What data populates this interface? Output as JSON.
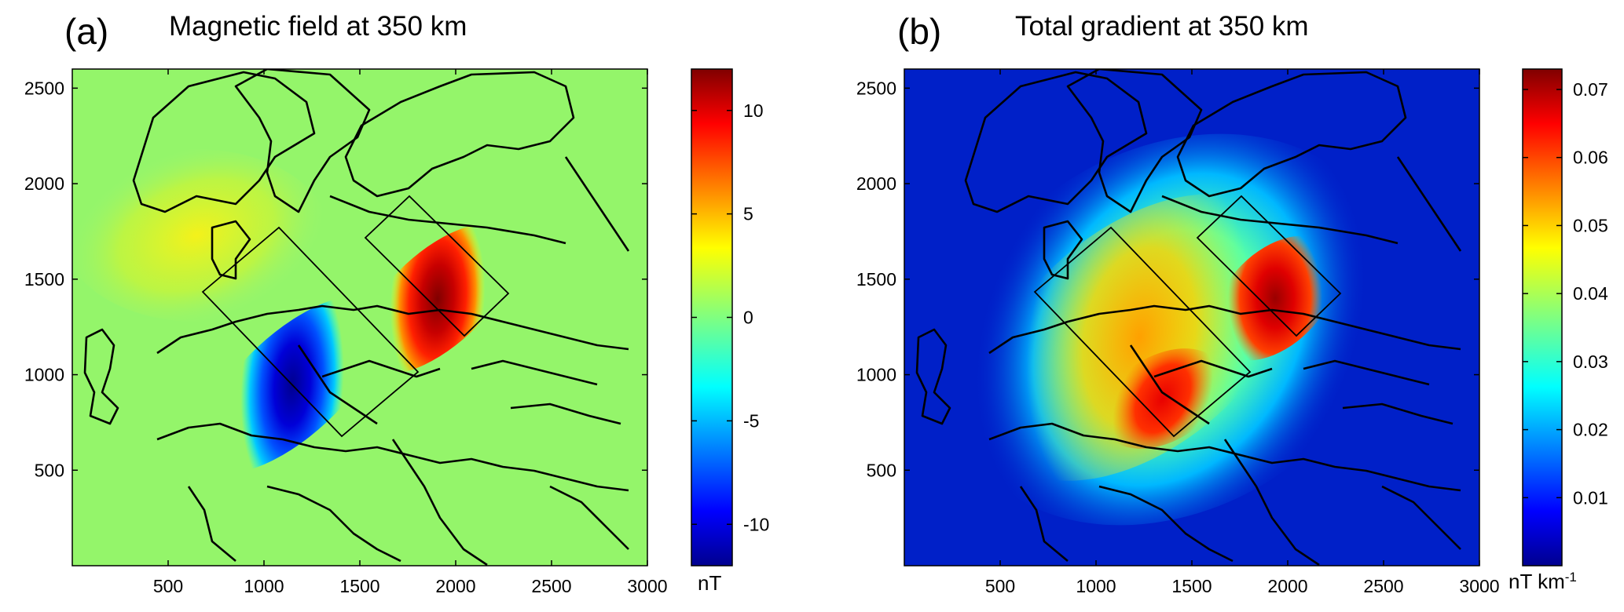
{
  "figure": {
    "panels": [
      {
        "label": "(a)",
        "title": "Magnetic field at 350 km"
      },
      {
        "label": "(b)",
        "title": "Total gradient at 350 km"
      }
    ]
  },
  "chart_data": [
    {
      "type": "heatmap",
      "title": "Magnetic field at 350 km",
      "panel_label": "(a)",
      "xlim": [
        0,
        3000
      ],
      "ylim": [
        0,
        2600
      ],
      "x_ticks": [
        500,
        1000,
        1500,
        2000,
        2500,
        3000
      ],
      "x_tick_labels": [
        "500",
        "1000",
        "1500",
        "2000",
        "2500",
        "3000"
      ],
      "y_ticks": [
        500,
        1000,
        1500,
        2000,
        2500
      ],
      "y_tick_labels": [
        "500",
        "1000",
        "1500",
        "2000",
        "2500"
      ],
      "colorbar": {
        "range": [
          -12,
          12
        ],
        "colormap": "jet",
        "ticks": [
          -10,
          -5,
          0,
          5,
          10
        ],
        "tick_labels": [
          "-10",
          "-5",
          "0",
          "5",
          "10"
        ],
        "label": "nT"
      },
      "anomalies": [
        {
          "kind": "positive",
          "x": 1950,
          "y": 1400,
          "value": 12
        },
        {
          "kind": "negative",
          "x": 1150,
          "y": 950,
          "value": -12
        },
        {
          "kind": "weak-positive",
          "x": 700,
          "y": 1750,
          "value": 3
        }
      ],
      "rectangles": [
        {
          "corners": [
            [
              680,
              1420
            ],
            [
              1080,
              1770
            ],
            [
              1810,
              990
            ],
            [
              1410,
              640
            ]
          ]
        },
        {
          "corners": [
            [
              1520,
              1710
            ],
            [
              1750,
              1930
            ],
            [
              2270,
              1400
            ],
            [
              2040,
              1180
            ]
          ]
        }
      ]
    },
    {
      "type": "heatmap",
      "title": "Total gradient at 350 km",
      "panel_label": "(b)",
      "xlim": [
        0,
        3000
      ],
      "ylim": [
        0,
        2600
      ],
      "x_ticks": [
        500,
        1000,
        1500,
        2000,
        2500,
        3000
      ],
      "x_tick_labels": [
        "500",
        "1000",
        "1500",
        "2000",
        "2500",
        "3000"
      ],
      "y_ticks": [
        500,
        1000,
        1500,
        2000,
        2500
      ],
      "y_tick_labels": [
        "500",
        "1000",
        "1500",
        "2000",
        "2500"
      ],
      "colorbar": {
        "range": [
          0,
          0.073
        ],
        "colormap": "jet",
        "ticks": [
          0.01,
          0.02,
          0.03,
          0.04,
          0.05,
          0.06,
          0.07
        ],
        "tick_labels": [
          "0.01",
          "0.02",
          "0.03",
          "0.04",
          "0.05",
          "0.06",
          "0.07"
        ],
        "label": "nT km-1"
      },
      "anomalies": [
        {
          "kind": "max",
          "x": 1980,
          "y": 1400,
          "value": 0.073
        },
        {
          "kind": "high",
          "x": 1450,
          "y": 920,
          "value": 0.065
        },
        {
          "kind": "high",
          "x": 1200,
          "y": 1250,
          "value": 0.055
        }
      ],
      "rectangles": [
        {
          "corners": [
            [
              680,
              1420
            ],
            [
              1080,
              1770
            ],
            [
              1810,
              990
            ],
            [
              1410,
              640
            ]
          ]
        },
        {
          "corners": [
            [
              1520,
              1710
            ],
            [
              1750,
              1930
            ],
            [
              2270,
              1400
            ],
            [
              2040,
              1180
            ]
          ]
        }
      ]
    }
  ]
}
